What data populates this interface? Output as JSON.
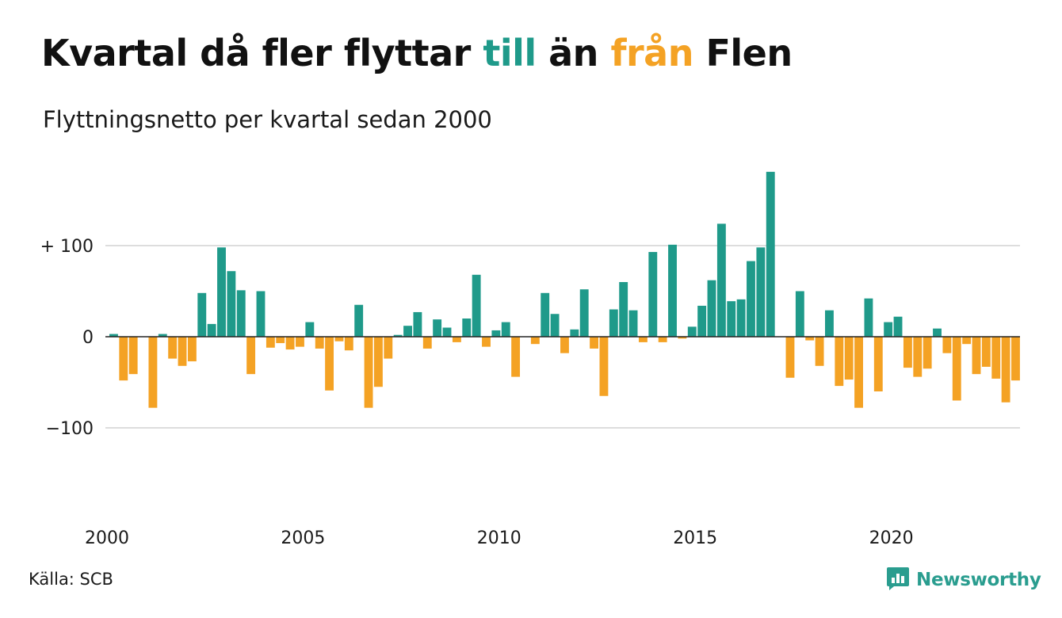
{
  "title": {
    "part1": "Kvartal då fler flyttar ",
    "highlight1": "till",
    "part2": " än ",
    "highlight2": "från",
    "part3": " Flen"
  },
  "subtitle": "Flyttningsnetto per kvartal sedan 2000",
  "source": "Källa: SCB",
  "brand": {
    "name": "Newsworthy",
    "icon": "bar-chart-speech-icon"
  },
  "colors": {
    "positive": "#1f9a8a",
    "negative": "#f4a224",
    "grid": "#dddddd",
    "text": "#1a1a1a",
    "brand": "#2a9d8f"
  },
  "chart_data": {
    "type": "bar",
    "start_year": 2000,
    "quarters_per_year": 4,
    "ylim": [
      -190,
      190
    ],
    "yticks": [
      {
        "value": 100,
        "label": "+ 100"
      },
      {
        "value": 0,
        "label": "0"
      },
      {
        "value": -100,
        "label": "−100"
      }
    ],
    "xticks": [
      {
        "year": 2000,
        "label": "2000"
      },
      {
        "year": 2005,
        "label": "2005"
      },
      {
        "year": 2010,
        "label": "2010"
      },
      {
        "year": 2015,
        "label": "2015"
      },
      {
        "year": 2020,
        "label": "2020"
      }
    ],
    "values": [
      3,
      -48,
      -41,
      0,
      -78,
      3,
      -24,
      -32,
      -27,
      48,
      14,
      98,
      72,
      51,
      -41,
      50,
      -12,
      -7,
      -14,
      -11,
      16,
      -13,
      -59,
      -5,
      -15,
      35,
      -78,
      -55,
      -24,
      2,
      12,
      27,
      -13,
      19,
      10,
      -6,
      20,
      68,
      -11,
      7,
      16,
      -44,
      0,
      -8,
      48,
      25,
      -18,
      8,
      52,
      -13,
      -65,
      30,
      60,
      29,
      -6,
      93,
      -6,
      101,
      -2,
      11,
      34,
      62,
      124,
      39,
      41,
      83,
      98,
      181,
      0,
      -45,
      50,
      -4,
      -32,
      29,
      -54,
      -47,
      -78,
      42,
      -60,
      16,
      22,
      -34,
      -44,
      -35,
      9,
      -18,
      -70,
      -8,
      -41,
      -33,
      -46,
      -72,
      -48
    ]
  }
}
